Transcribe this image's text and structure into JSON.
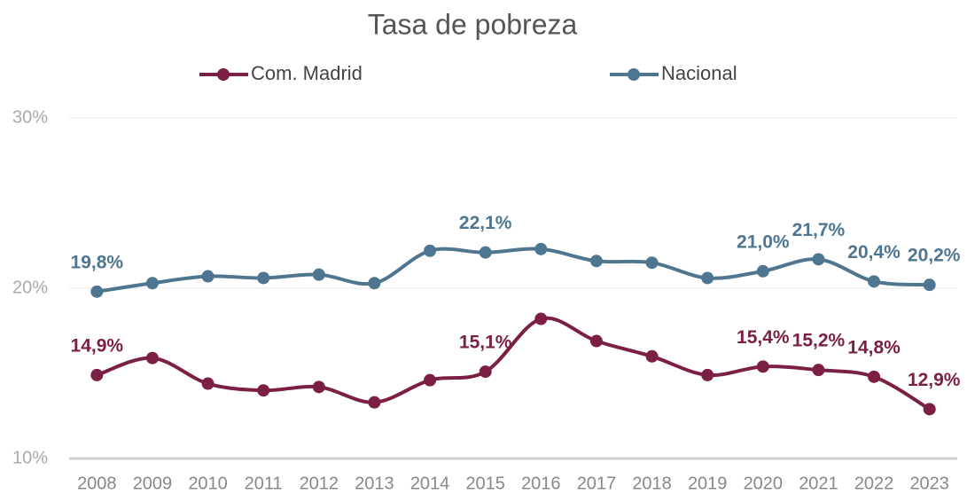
{
  "chart_data": {
    "type": "line",
    "title": "Tasa de pobreza",
    "categories": [
      "2008",
      "2009",
      "2010",
      "2011",
      "2012",
      "2013",
      "2014",
      "2015",
      "2016",
      "2017",
      "2018",
      "2019",
      "2020",
      "2021",
      "2022",
      "2023"
    ],
    "series": [
      {
        "name": "Com. Madrid",
        "color": "#7b1f45",
        "values": [
          14.9,
          15.9,
          14.4,
          14.0,
          14.2,
          13.3,
          14.6,
          15.1,
          18.2,
          16.9,
          16.0,
          14.9,
          15.4,
          15.2,
          14.8,
          12.9
        ],
        "value_labels": [
          "14,9%",
          null,
          null,
          null,
          null,
          null,
          null,
          "15,1%",
          null,
          null,
          null,
          null,
          "15,4%",
          "15,2%",
          "14,8%",
          "12,9%"
        ]
      },
      {
        "name": "Nacional",
        "color": "#4f7690",
        "values": [
          19.8,
          20.3,
          20.7,
          20.6,
          20.8,
          20.3,
          22.2,
          22.1,
          22.3,
          21.6,
          21.5,
          20.6,
          21.0,
          21.7,
          20.4,
          20.2
        ],
        "value_labels": [
          "19,8%",
          null,
          null,
          null,
          null,
          null,
          null,
          "22,1%",
          null,
          null,
          null,
          null,
          "21,0%",
          "21,7%",
          "20,4%",
          "20,2%"
        ]
      }
    ],
    "ylim": [
      10,
      30
    ],
    "yticks": [
      {
        "value": 10,
        "label": "10%"
      },
      {
        "value": 20,
        "label": "20%"
      },
      {
        "value": 30,
        "label": "30%"
      }
    ],
    "grid": true,
    "legend": "top"
  }
}
